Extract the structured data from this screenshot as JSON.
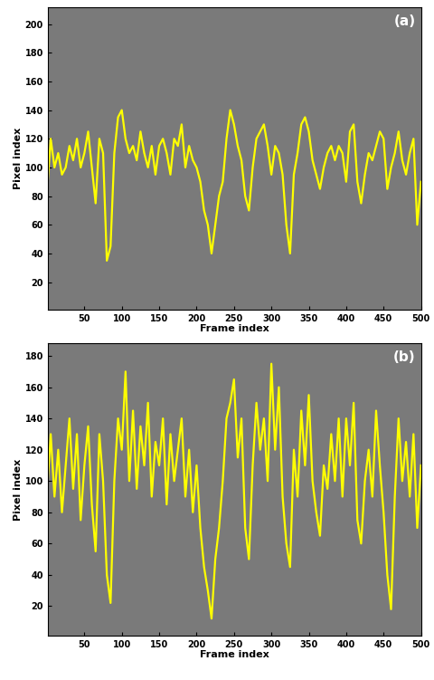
{
  "chart_data": [
    {
      "type": "line",
      "annotations": [
        "(a)"
      ],
      "x_label": "Frame index",
      "y_label": "Pixel index",
      "color": "#ffff00",
      "x": [
        1,
        5,
        10,
        15,
        20,
        25,
        30,
        35,
        40,
        45,
        50,
        55,
        60,
        65,
        70,
        75,
        80,
        85,
        90,
        95,
        100,
        105,
        110,
        115,
        120,
        125,
        130,
        135,
        140,
        145,
        150,
        155,
        160,
        165,
        170,
        175,
        180,
        185,
        190,
        195,
        200,
        205,
        210,
        215,
        220,
        225,
        230,
        235,
        240,
        245,
        250,
        255,
        260,
        265,
        270,
        275,
        280,
        285,
        290,
        295,
        300,
        305,
        310,
        315,
        320,
        325,
        330,
        335,
        340,
        345,
        350,
        355,
        360,
        365,
        370,
        375,
        380,
        385,
        390,
        395,
        400,
        405,
        410,
        415,
        420,
        425,
        430,
        435,
        440,
        445,
        450,
        455,
        460,
        465,
        470,
        475,
        480,
        485,
        490,
        495,
        500
      ],
      "values": [
        90,
        120,
        100,
        110,
        95,
        100,
        115,
        105,
        120,
        100,
        110,
        125,
        100,
        75,
        120,
        110,
        35,
        45,
        110,
        135,
        140,
        120,
        110,
        115,
        105,
        125,
        110,
        100,
        115,
        95,
        115,
        120,
        110,
        95,
        120,
        115,
        130,
        100,
        115,
        105,
        100,
        90,
        70,
        60,
        40,
        60,
        80,
        90,
        120,
        140,
        130,
        115,
        105,
        80,
        70,
        100,
        120,
        125,
        130,
        115,
        95,
        115,
        110,
        95,
        60,
        40,
        95,
        110,
        130,
        135,
        125,
        105,
        95,
        85,
        100,
        110,
        115,
        105,
        115,
        110,
        90,
        125,
        130,
        90,
        75,
        95,
        110,
        105,
        115,
        125,
        120,
        85,
        100,
        110,
        125,
        105,
        95,
        110,
        120,
        60,
        90
      ],
      "xlim": [
        1,
        500
      ],
      "ylim": [
        1,
        212
      ],
      "xticks": [
        50,
        100,
        150,
        200,
        250,
        300,
        350,
        400,
        450,
        500
      ],
      "yticks": [
        20,
        40,
        60,
        80,
        100,
        120,
        140,
        160,
        180,
        200
      ]
    },
    {
      "type": "line",
      "annotations": [
        "(b)"
      ],
      "x_label": "Frame index",
      "y_label": "Pixel index",
      "color": "#ffff00",
      "x": [
        1,
        5,
        10,
        15,
        20,
        25,
        30,
        35,
        40,
        45,
        50,
        55,
        60,
        65,
        70,
        75,
        80,
        85,
        90,
        95,
        100,
        105,
        110,
        115,
        120,
        125,
        130,
        135,
        140,
        145,
        150,
        155,
        160,
        165,
        170,
        175,
        180,
        185,
        190,
        195,
        200,
        205,
        210,
        215,
        220,
        225,
        230,
        235,
        240,
        245,
        250,
        255,
        260,
        265,
        270,
        275,
        280,
        285,
        290,
        295,
        300,
        305,
        310,
        315,
        320,
        325,
        330,
        335,
        340,
        345,
        350,
        355,
        360,
        365,
        370,
        375,
        380,
        385,
        390,
        395,
        400,
        405,
        410,
        415,
        420,
        425,
        430,
        435,
        440,
        445,
        450,
        455,
        460,
        465,
        470,
        475,
        480,
        485,
        490,
        495,
        500
      ],
      "values": [
        100,
        130,
        90,
        120,
        80,
        110,
        140,
        95,
        130,
        75,
        110,
        135,
        85,
        55,
        130,
        100,
        40,
        22,
        100,
        140,
        120,
        170,
        100,
        145,
        95,
        135,
        110,
        150,
        90,
        125,
        110,
        140,
        85,
        130,
        100,
        120,
        140,
        90,
        120,
        80,
        110,
        70,
        45,
        30,
        12,
        50,
        70,
        100,
        140,
        150,
        165,
        115,
        140,
        70,
        50,
        110,
        150,
        120,
        140,
        100,
        175,
        120,
        160,
        90,
        60,
        45,
        120,
        90,
        145,
        110,
        155,
        100,
        80,
        65,
        110,
        95,
        130,
        100,
        140,
        90,
        140,
        110,
        150,
        75,
        60,
        100,
        120,
        90,
        145,
        110,
        80,
        40,
        18,
        90,
        140,
        100,
        125,
        90,
        130,
        70,
        110
      ],
      "xlim": [
        1,
        500
      ],
      "ylim": [
        1,
        188
      ],
      "xticks": [
        50,
        100,
        150,
        200,
        250,
        300,
        350,
        400,
        450,
        500
      ],
      "yticks": [
        20,
        40,
        60,
        80,
        100,
        120,
        140,
        160,
        180
      ]
    }
  ]
}
